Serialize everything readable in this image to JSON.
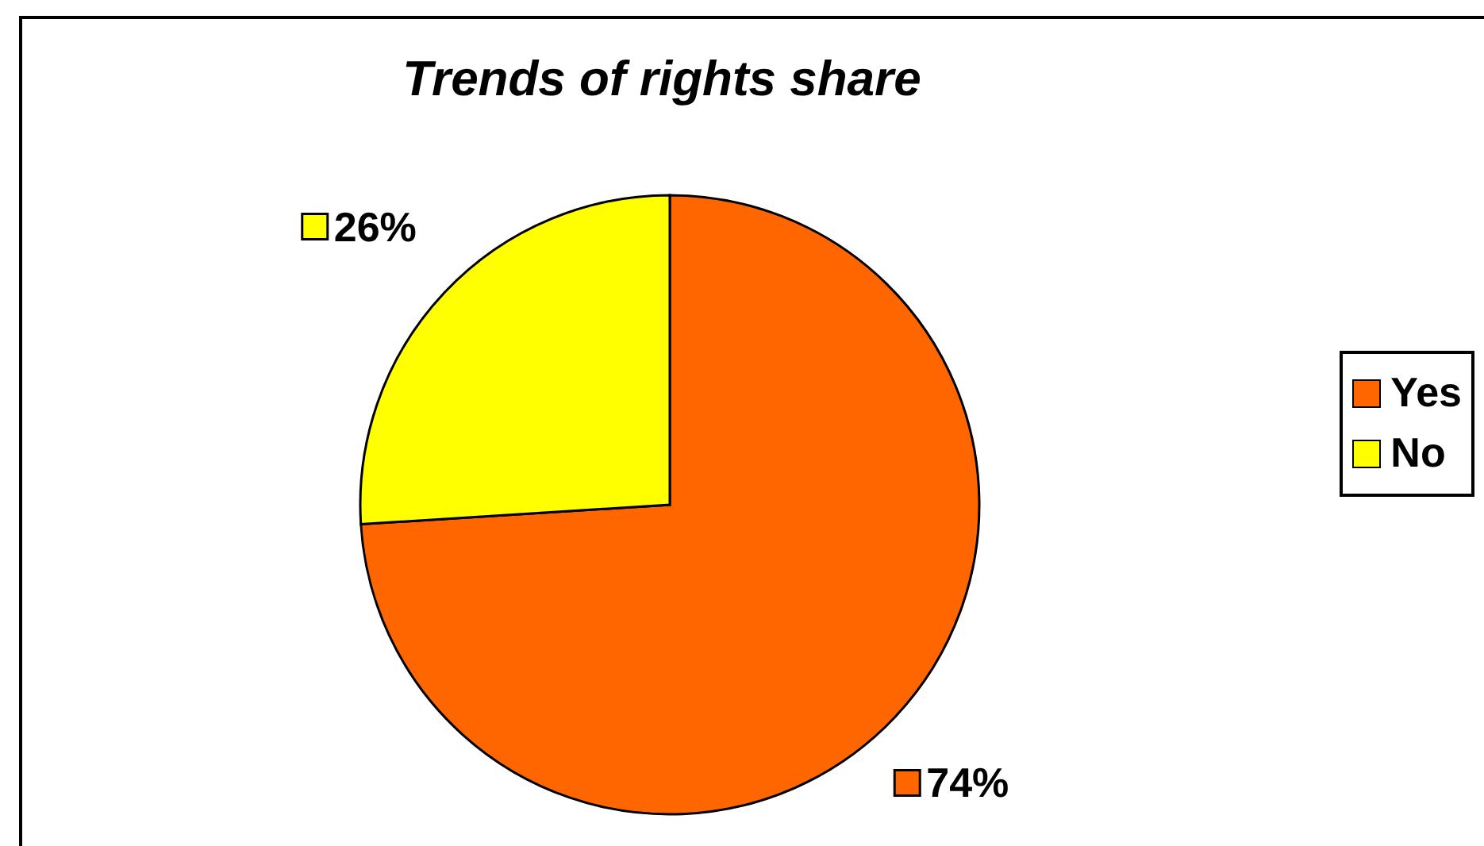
{
  "chart_data": {
    "type": "pie",
    "title": "Trends of rights share",
    "categories": [
      "Yes",
      "No"
    ],
    "values": [
      74,
      26
    ],
    "colors": [
      "#ff6600",
      "#ffff00"
    ],
    "value_labels": [
      "74%",
      "26%"
    ],
    "legend": "right"
  }
}
